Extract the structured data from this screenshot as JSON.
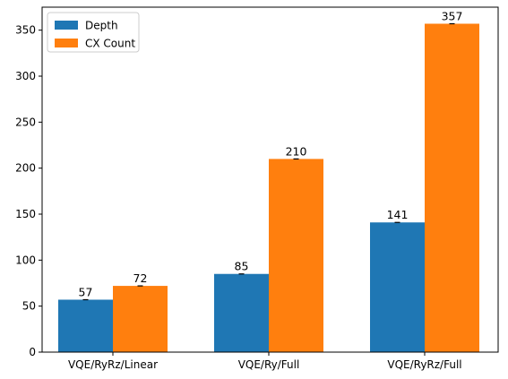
{
  "chart_data": {
    "type": "bar",
    "title": "",
    "xlabel": "",
    "ylabel": "",
    "categories": [
      "VQE/RyRz/Linear",
      "VQE/Ry/Full",
      "VQE/RyRz/Full"
    ],
    "series": [
      {
        "name": "Depth",
        "color": "#1f77b4",
        "values": [
          57,
          85,
          141
        ]
      },
      {
        "name": "CX Count",
        "color": "#ff7f0e",
        "values": [
          72,
          210,
          357
        ]
      }
    ],
    "yticks": [
      0,
      50,
      100,
      150,
      200,
      250,
      300,
      350
    ],
    "ylim": [
      0,
      375
    ],
    "grid": false,
    "legend_position": "top-left",
    "error_bars": true
  }
}
